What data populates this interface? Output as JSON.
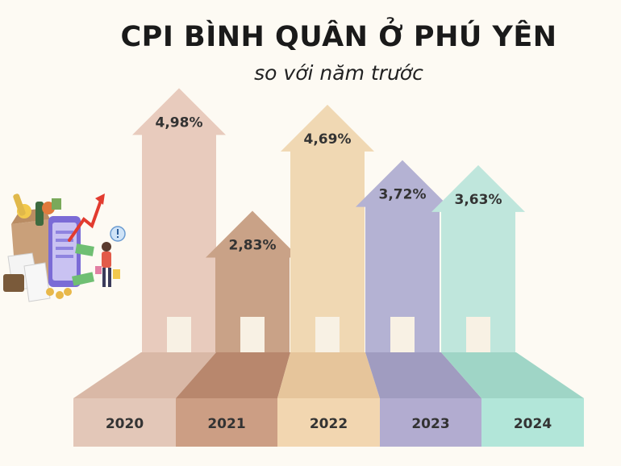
{
  "header": {
    "title": "CPI BÌNH QUÂN Ở PHÚ YÊN",
    "subtitle": "so với năm trước"
  },
  "chart_data": {
    "type": "bar",
    "title": "CPI BÌNH QUÂN Ở PHÚ YÊN",
    "subtitle": "so với năm trước",
    "categories": [
      "2020",
      "2021",
      "2022",
      "2023",
      "2024"
    ],
    "values": [
      4.98,
      2.83,
      4.69,
      3.72,
      3.63
    ],
    "value_labels": [
      "4,98%",
      "2,83%",
      "4,69%",
      "3,72%",
      "3,63%"
    ],
    "colors": [
      "#e8cbbd",
      "#c9a287",
      "#f0d8b3",
      "#b4b2d3",
      "#bfe6dc"
    ],
    "base_colors": [
      "#e3c7b8",
      "#cc9e84",
      "#f2d6b0",
      "#b2acd0",
      "#b2e6d9"
    ],
    "top_colors": [
      "#d9b8a6",
      "#b8876d",
      "#e6c59b",
      "#a09cc0",
      "#9fd5c6"
    ],
    "unit": "%"
  },
  "illustration": {
    "icon": "shopping-inflation-illustration"
  }
}
